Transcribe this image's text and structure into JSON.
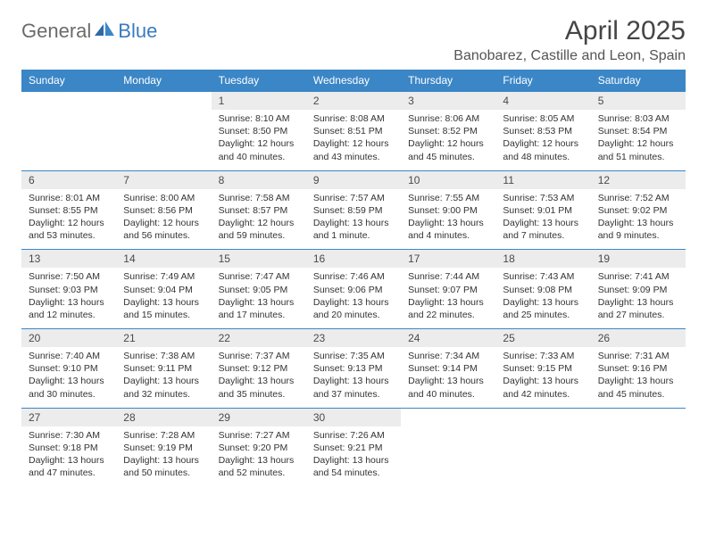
{
  "logo": {
    "part1": "General",
    "part2": "Blue"
  },
  "title": "April 2025",
  "location": "Banobarez, Castille and Leon, Spain",
  "colors": {
    "header_bg": "#3b86c6",
    "header_text": "#ffffff",
    "daynum_bg": "#ececec",
    "border": "#3b86c6",
    "logo_gray": "#6b6b6b",
    "logo_blue": "#3b7bbf"
  },
  "day_names": [
    "Sunday",
    "Monday",
    "Tuesday",
    "Wednesday",
    "Thursday",
    "Friday",
    "Saturday"
  ],
  "weeks": [
    [
      null,
      null,
      {
        "n": "1",
        "sr": "Sunrise: 8:10 AM",
        "ss": "Sunset: 8:50 PM",
        "dl": "Daylight: 12 hours and 40 minutes."
      },
      {
        "n": "2",
        "sr": "Sunrise: 8:08 AM",
        "ss": "Sunset: 8:51 PM",
        "dl": "Daylight: 12 hours and 43 minutes."
      },
      {
        "n": "3",
        "sr": "Sunrise: 8:06 AM",
        "ss": "Sunset: 8:52 PM",
        "dl": "Daylight: 12 hours and 45 minutes."
      },
      {
        "n": "4",
        "sr": "Sunrise: 8:05 AM",
        "ss": "Sunset: 8:53 PM",
        "dl": "Daylight: 12 hours and 48 minutes."
      },
      {
        "n": "5",
        "sr": "Sunrise: 8:03 AM",
        "ss": "Sunset: 8:54 PM",
        "dl": "Daylight: 12 hours and 51 minutes."
      }
    ],
    [
      {
        "n": "6",
        "sr": "Sunrise: 8:01 AM",
        "ss": "Sunset: 8:55 PM",
        "dl": "Daylight: 12 hours and 53 minutes."
      },
      {
        "n": "7",
        "sr": "Sunrise: 8:00 AM",
        "ss": "Sunset: 8:56 PM",
        "dl": "Daylight: 12 hours and 56 minutes."
      },
      {
        "n": "8",
        "sr": "Sunrise: 7:58 AM",
        "ss": "Sunset: 8:57 PM",
        "dl": "Daylight: 12 hours and 59 minutes."
      },
      {
        "n": "9",
        "sr": "Sunrise: 7:57 AM",
        "ss": "Sunset: 8:59 PM",
        "dl": "Daylight: 13 hours and 1 minute."
      },
      {
        "n": "10",
        "sr": "Sunrise: 7:55 AM",
        "ss": "Sunset: 9:00 PM",
        "dl": "Daylight: 13 hours and 4 minutes."
      },
      {
        "n": "11",
        "sr": "Sunrise: 7:53 AM",
        "ss": "Sunset: 9:01 PM",
        "dl": "Daylight: 13 hours and 7 minutes."
      },
      {
        "n": "12",
        "sr": "Sunrise: 7:52 AM",
        "ss": "Sunset: 9:02 PM",
        "dl": "Daylight: 13 hours and 9 minutes."
      }
    ],
    [
      {
        "n": "13",
        "sr": "Sunrise: 7:50 AM",
        "ss": "Sunset: 9:03 PM",
        "dl": "Daylight: 13 hours and 12 minutes."
      },
      {
        "n": "14",
        "sr": "Sunrise: 7:49 AM",
        "ss": "Sunset: 9:04 PM",
        "dl": "Daylight: 13 hours and 15 minutes."
      },
      {
        "n": "15",
        "sr": "Sunrise: 7:47 AM",
        "ss": "Sunset: 9:05 PM",
        "dl": "Daylight: 13 hours and 17 minutes."
      },
      {
        "n": "16",
        "sr": "Sunrise: 7:46 AM",
        "ss": "Sunset: 9:06 PM",
        "dl": "Daylight: 13 hours and 20 minutes."
      },
      {
        "n": "17",
        "sr": "Sunrise: 7:44 AM",
        "ss": "Sunset: 9:07 PM",
        "dl": "Daylight: 13 hours and 22 minutes."
      },
      {
        "n": "18",
        "sr": "Sunrise: 7:43 AM",
        "ss": "Sunset: 9:08 PM",
        "dl": "Daylight: 13 hours and 25 minutes."
      },
      {
        "n": "19",
        "sr": "Sunrise: 7:41 AM",
        "ss": "Sunset: 9:09 PM",
        "dl": "Daylight: 13 hours and 27 minutes."
      }
    ],
    [
      {
        "n": "20",
        "sr": "Sunrise: 7:40 AM",
        "ss": "Sunset: 9:10 PM",
        "dl": "Daylight: 13 hours and 30 minutes."
      },
      {
        "n": "21",
        "sr": "Sunrise: 7:38 AM",
        "ss": "Sunset: 9:11 PM",
        "dl": "Daylight: 13 hours and 32 minutes."
      },
      {
        "n": "22",
        "sr": "Sunrise: 7:37 AM",
        "ss": "Sunset: 9:12 PM",
        "dl": "Daylight: 13 hours and 35 minutes."
      },
      {
        "n": "23",
        "sr": "Sunrise: 7:35 AM",
        "ss": "Sunset: 9:13 PM",
        "dl": "Daylight: 13 hours and 37 minutes."
      },
      {
        "n": "24",
        "sr": "Sunrise: 7:34 AM",
        "ss": "Sunset: 9:14 PM",
        "dl": "Daylight: 13 hours and 40 minutes."
      },
      {
        "n": "25",
        "sr": "Sunrise: 7:33 AM",
        "ss": "Sunset: 9:15 PM",
        "dl": "Daylight: 13 hours and 42 minutes."
      },
      {
        "n": "26",
        "sr": "Sunrise: 7:31 AM",
        "ss": "Sunset: 9:16 PM",
        "dl": "Daylight: 13 hours and 45 minutes."
      }
    ],
    [
      {
        "n": "27",
        "sr": "Sunrise: 7:30 AM",
        "ss": "Sunset: 9:18 PM",
        "dl": "Daylight: 13 hours and 47 minutes."
      },
      {
        "n": "28",
        "sr": "Sunrise: 7:28 AM",
        "ss": "Sunset: 9:19 PM",
        "dl": "Daylight: 13 hours and 50 minutes."
      },
      {
        "n": "29",
        "sr": "Sunrise: 7:27 AM",
        "ss": "Sunset: 9:20 PM",
        "dl": "Daylight: 13 hours and 52 minutes."
      },
      {
        "n": "30",
        "sr": "Sunrise: 7:26 AM",
        "ss": "Sunset: 9:21 PM",
        "dl": "Daylight: 13 hours and 54 minutes."
      },
      null,
      null,
      null
    ]
  ]
}
